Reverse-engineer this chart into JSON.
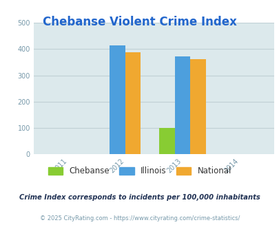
{
  "title": "Chebanse Violent Crime Index",
  "title_color": "#2266cc",
  "x_ticks": [
    2011,
    2012,
    2013,
    2014
  ],
  "xlim": [
    2010.4,
    2014.6
  ],
  "ylim": [
    0,
    500
  ],
  "y_ticks": [
    0,
    100,
    200,
    300,
    400,
    500
  ],
  "background_color": "#dce9ec",
  "plot_bg": "#dce9ec",
  "bars": [
    {
      "year": 2012,
      "label": "Illinois",
      "value": 415,
      "color": "#4d9fdd"
    },
    {
      "year": 2012,
      "label": "National",
      "value": 388,
      "color": "#f0a830"
    },
    {
      "year": 2013,
      "label": "Chebanse",
      "value": 100,
      "color": "#88cc33"
    },
    {
      "year": 2013,
      "label": "Illinois",
      "value": 373,
      "color": "#4d9fdd"
    },
    {
      "year": 2013,
      "label": "National",
      "value": 362,
      "color": "#f0a830"
    }
  ],
  "bar_width": 0.27,
  "legend_labels": [
    "Chebanse",
    "Illinois",
    "National"
  ],
  "legend_colors": [
    "#88cc33",
    "#4d9fdd",
    "#f0a830"
  ],
  "footer_note": "Crime Index corresponds to incidents per 100,000 inhabitants",
  "footer_copy": "© 2025 CityRating.com - https://www.cityrating.com/crime-statistics/",
  "note_color": "#223355",
  "copy_color": "#7799aa",
  "grid_color": "#c0d0d5",
  "tick_color": "#7799aa",
  "title_fontsize": 12,
  "tick_fontsize": 7
}
